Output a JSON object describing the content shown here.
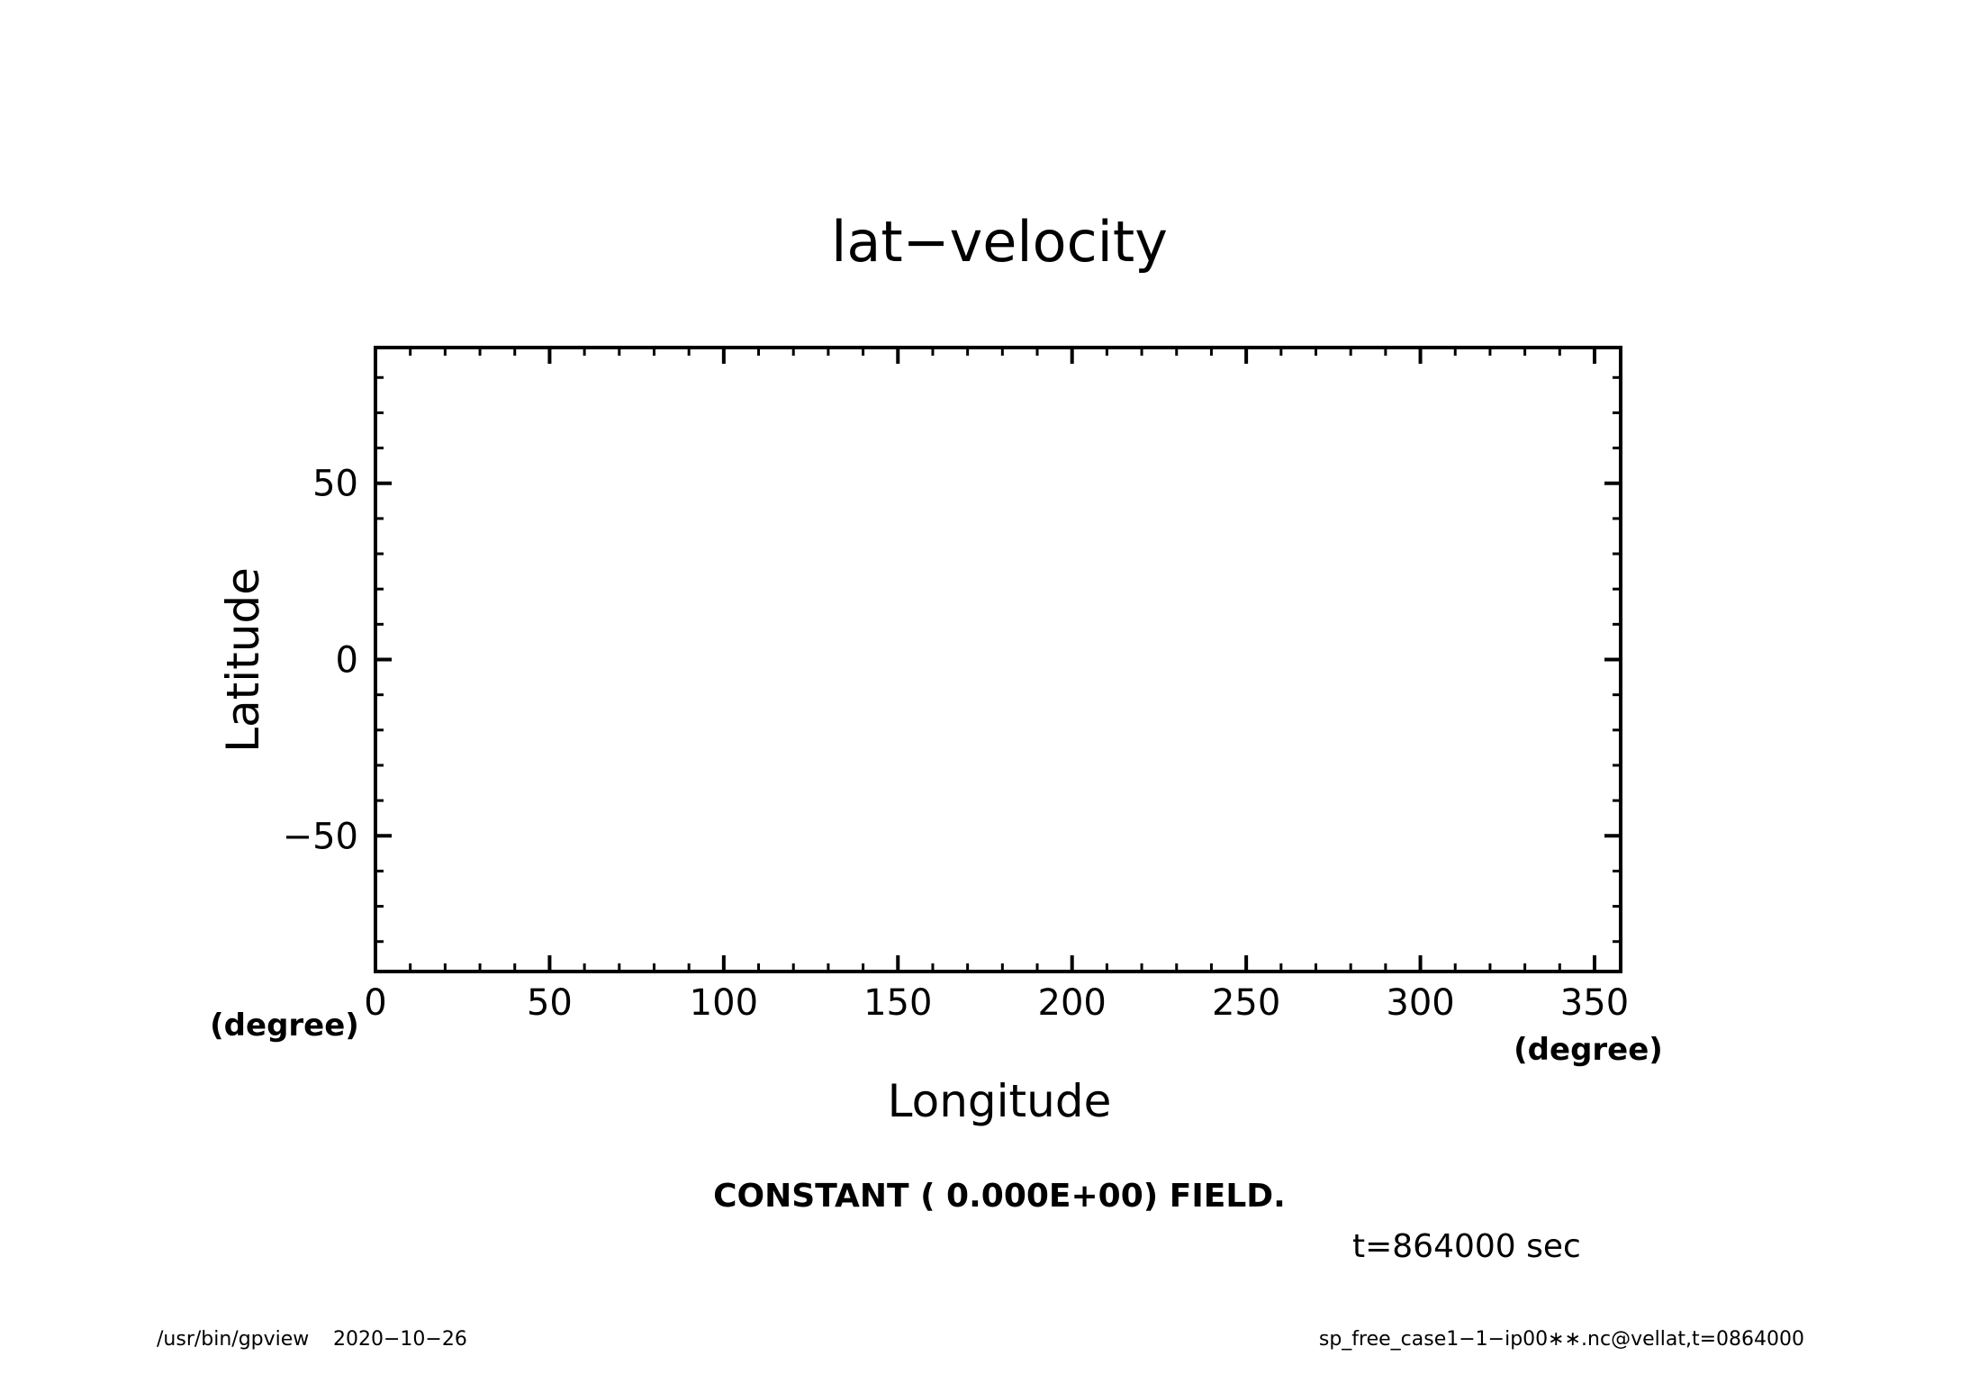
{
  "chart_data": {
    "type": "heatmap",
    "title": "lat−velocity",
    "xlabel": "Longitude",
    "ylabel": "Latitude",
    "x_unit": "(degree)",
    "y_unit": "(degree)",
    "xlim": [
      0,
      357.5
    ],
    "ylim": [
      -88.5,
      88.5
    ],
    "x_ticks": [
      0,
      50,
      100,
      150,
      200,
      250,
      300,
      350
    ],
    "x_tick_labels": [
      "0",
      "50",
      "100",
      "150",
      "200",
      "250",
      "300",
      "350"
    ],
    "y_ticks": [
      -50,
      0,
      50
    ],
    "y_tick_labels": [
      "−50",
      "0",
      "50"
    ],
    "x_minor_step": 10,
    "y_minor_step": 10,
    "grid": false,
    "field_value": 0,
    "note": "CONSTANT ( 0.000E+00) FIELD.",
    "time_label": "t=864000 sec"
  },
  "footer": {
    "left_program": "/usr/bin/gpview",
    "left_date": "2020−10−26",
    "right_source": "sp_free_case1−1−ip00∗∗.nc@vellat,t=0864000"
  },
  "colors": {
    "foreground": "#000000",
    "background": "#ffffff"
  }
}
